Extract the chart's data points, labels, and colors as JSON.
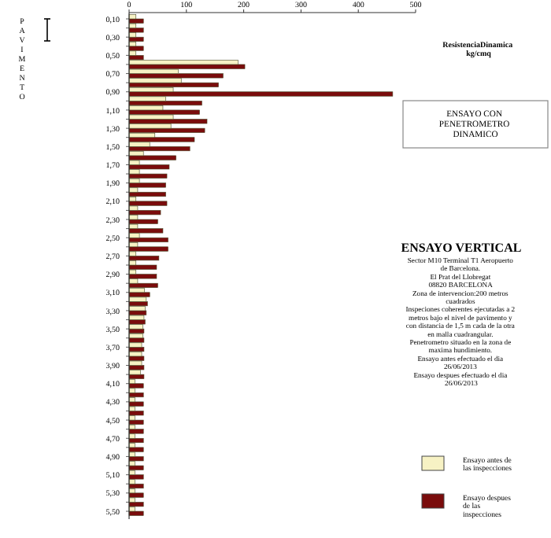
{
  "chart_data": {
    "type": "bar",
    "orientation": "horizontal",
    "title": "ENSAYO VERTICAL",
    "subtitle": "ENSAYO CON\nPENETROMETRO\nDINAMICO",
    "xlabel": "ResistenciaDinamica\nkg/cmq",
    "ylabel": "PAVIMENTO",
    "annotations": [
      "Sector M10 Terminal T1  Aeropuerto\nde Barcelona.\nEl Prat del Llobregat\n08820 BARCELONA\nZona de intervencion:200  metros\ncuadrados\nInspeciones coherentes ejecutadas a 2\nmetros bajo el nivel de pavimento  y\ncon distancia de 1,5  m cada de la otra\nen malla cuadrangular.\nPenetrometro  situado en la zona de\nmaxima hundimiento.\nEnsayo antes efectuado el dia\n26/06/2013\nEnsayo despues efectuado el dia\n26/06/2013"
    ],
    "categories": [
      "0,10",
      null,
      "0,30",
      null,
      "0,50",
      null,
      "0,70",
      null,
      "0,90",
      null,
      "1,10",
      null,
      "1,30",
      null,
      "1,50",
      null,
      "1,70",
      null,
      "1,90",
      null,
      "2,10",
      null,
      "2,30",
      null,
      "2,50",
      null,
      "2,70",
      null,
      "2,90",
      null,
      "3,10",
      null,
      "3,30",
      null,
      "3,50",
      null,
      "3,70",
      null,
      "3,90",
      null,
      "4,10",
      null,
      "4,30",
      null,
      "4,50",
      null,
      "4,70",
      null,
      "4,90",
      null,
      "5,10",
      null,
      "5,30",
      null,
      "5,50"
    ],
    "series": [
      {
        "name": "Ensayo despues de las inspecciones",
        "color": "#7a0c0c",
        "values": [
          25,
          25,
          25,
          25,
          25,
          202,
          164,
          156,
          460,
          127,
          123,
          136,
          132,
          114,
          106,
          82,
          70,
          66,
          64,
          64,
          66,
          55,
          50,
          59,
          68,
          68,
          52,
          48,
          48,
          50,
          36,
          32,
          30,
          28,
          26,
          26,
          26,
          26,
          26,
          26,
          25,
          25,
          25,
          25,
          25,
          25,
          25,
          25,
          25,
          25,
          25,
          25,
          25,
          25,
          25
        ]
      },
      {
        "name": "Ensayo antes de las inspecciones",
        "color": "#f7f2c4",
        "values": [
          12,
          12,
          12,
          12,
          12,
          190,
          86,
          91,
          77,
          64,
          59,
          77,
          73,
          45,
          36,
          25,
          18,
          18,
          18,
          15,
          12,
          15,
          15,
          15,
          18,
          15,
          12,
          12,
          12,
          15,
          27,
          30,
          28,
          26,
          24,
          24,
          22,
          22,
          22,
          20,
          10,
          10,
          10,
          10,
          10,
          10,
          10,
          10,
          10,
          10,
          10,
          10,
          10,
          10,
          10
        ]
      }
    ],
    "xlim": [
      0,
      500
    ],
    "xticks": [
      0,
      100,
      200,
      300,
      400,
      500
    ],
    "legend": "bottom right",
    "grid": false
  }
}
